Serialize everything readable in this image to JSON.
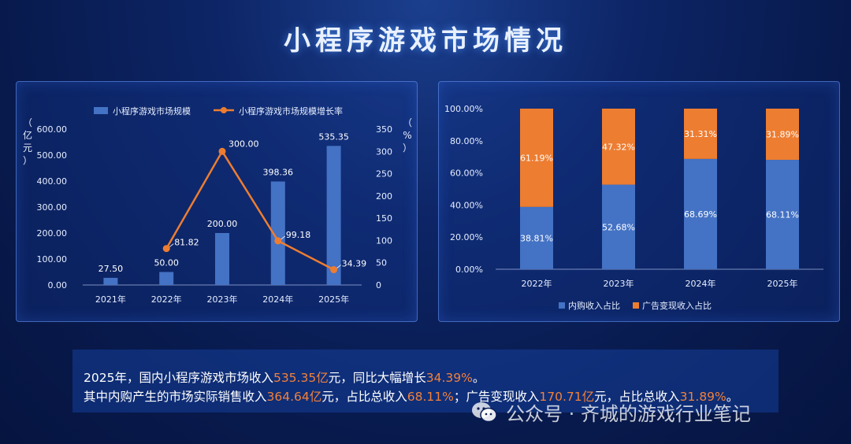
{
  "title": "小程序游戏市场情况",
  "chart_data": [
    {
      "type": "bar",
      "categories": [
        "2021年",
        "2022年",
        "2023年",
        "2024年",
        "2025年"
      ],
      "series": [
        {
          "name": "小程序游戏市场规模",
          "type": "bar",
          "values": [
            27.5,
            50.0,
            200.0,
            398.36,
            535.35
          ],
          "labels": [
            "27.50",
            "50.00",
            "200.00",
            "398.36",
            "535.35"
          ],
          "axis": "left"
        },
        {
          "name": "小程序游戏市场规模增长率",
          "type": "line",
          "values": [
            null,
            81.82,
            300.0,
            99.18,
            34.39
          ],
          "labels": [
            "",
            "81.82",
            "300.00",
            "99.18",
            "34.39"
          ],
          "axis": "right"
        }
      ],
      "y_left": {
        "label": "（亿元）",
        "ylim": [
          0,
          600
        ],
        "ticks": [
          "0.00",
          "100.00",
          "200.00",
          "300.00",
          "400.00",
          "500.00",
          "600.00"
        ]
      },
      "y_right": {
        "label": "（%）",
        "ylim": [
          0,
          350
        ],
        "ticks": [
          "0",
          "50",
          "100",
          "150",
          "200",
          "250",
          "300",
          "350"
        ]
      },
      "legend": "top-center",
      "grid": false
    },
    {
      "type": "bar",
      "stacked": true,
      "categories": [
        "2022年",
        "2023年",
        "2024年",
        "2025年"
      ],
      "series": [
        {
          "name": "内购收入占比",
          "values": [
            38.81,
            52.68,
            68.69,
            68.11
          ],
          "labels": [
            "38.81%",
            "52.68%",
            "68.69%",
            "68.11%"
          ]
        },
        {
          "name": "广告变现收入占比",
          "values": [
            61.19,
            47.32,
            31.31,
            31.89
          ],
          "labels": [
            "61.19%",
            "47.32%",
            "31.31%",
            "31.89%"
          ]
        }
      ],
      "ylim": [
        0,
        100
      ],
      "y_ticks": [
        "0.00%",
        "20.00%",
        "40.00%",
        "60.00%",
        "80.00%",
        "100.00%"
      ],
      "legend": "bottom-center",
      "grid": false
    }
  ],
  "colors": {
    "bar_blue": "#4472c4",
    "orange": "#ed7d31",
    "highlight": "#f2813a"
  },
  "summary": {
    "line1": [
      {
        "t": "2025年，国内小程序游戏市场收入",
        "hl": false
      },
      {
        "t": "535.35亿",
        "hl": true
      },
      {
        "t": "元，同比大幅增长",
        "hl": false
      },
      {
        "t": "34.39%",
        "hl": true
      },
      {
        "t": "。",
        "hl": false
      }
    ],
    "line2": [
      {
        "t": "其中内购产生的市场实际销售收入",
        "hl": false
      },
      {
        "t": "364.64亿",
        "hl": true
      },
      {
        "t": "元，占比总收入",
        "hl": false
      },
      {
        "t": "68.11%",
        "hl": true
      },
      {
        "t": "；广告变现收入",
        "hl": false
      },
      {
        "t": "170.71亿",
        "hl": true
      },
      {
        "t": "元，占比总收入",
        "hl": false
      },
      {
        "t": "31.89%",
        "hl": true
      },
      {
        "t": "。",
        "hl": false
      }
    ]
  },
  "watermark": {
    "text": "公众号 · 齐城的游戏行业笔记",
    "icon": "wechat-icon"
  }
}
